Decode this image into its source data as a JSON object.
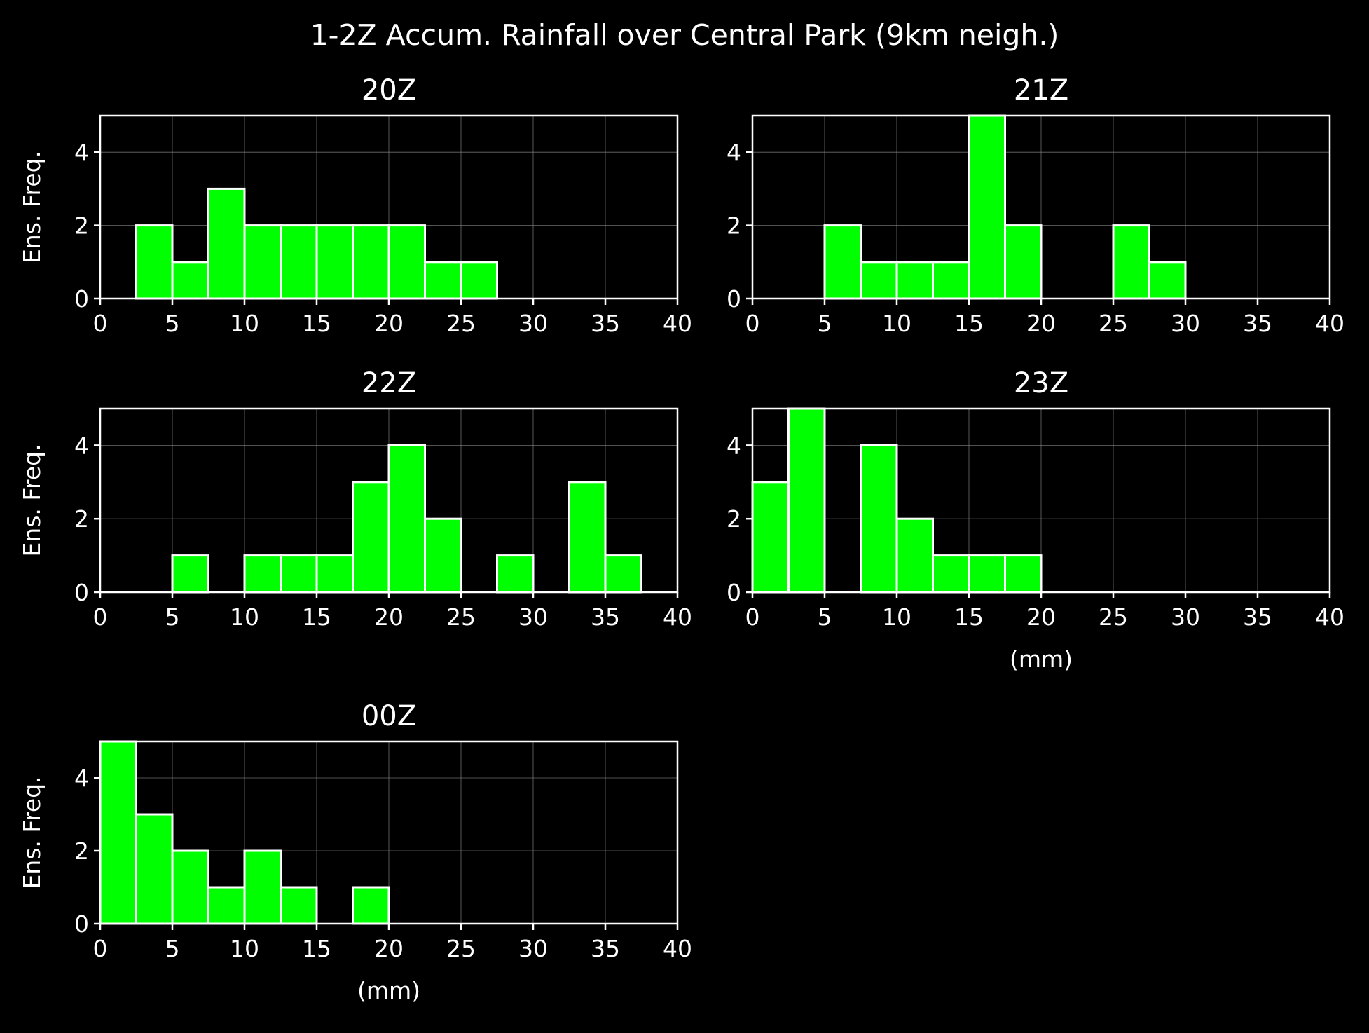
{
  "figure": {
    "suptitle": "1-2Z Accum. Rainfall over Central Park (9km neigh.)",
    "bar_color": "#00ff00",
    "edge_color": "#ffffff",
    "background": "#000000"
  },
  "chart_data": [
    {
      "type": "bar",
      "title": "20Z",
      "xlabel": "",
      "ylabel": "Ens. Freq.",
      "xlim": [
        0,
        40
      ],
      "ylim": [
        0,
        5
      ],
      "xticks": [
        0,
        5,
        10,
        15,
        20,
        25,
        30,
        35,
        40
      ],
      "yticks": [
        0,
        2,
        4
      ],
      "bin_edges": [
        0,
        2.5,
        5,
        7.5,
        10,
        12.5,
        15,
        17.5,
        20,
        22.5,
        25,
        27.5,
        30,
        32.5,
        35,
        37.5,
        40
      ],
      "values": [
        0,
        2,
        1,
        3,
        2,
        2,
        2,
        2,
        2,
        1,
        1,
        0,
        0,
        0,
        0,
        0
      ],
      "grid": true
    },
    {
      "type": "bar",
      "title": "21Z",
      "xlabel": "",
      "ylabel": "",
      "xlim": [
        0,
        40
      ],
      "ylim": [
        0,
        5
      ],
      "xticks": [
        0,
        5,
        10,
        15,
        20,
        25,
        30,
        35,
        40
      ],
      "yticks": [
        0,
        2,
        4
      ],
      "bin_edges": [
        0,
        2.5,
        5,
        7.5,
        10,
        12.5,
        15,
        17.5,
        20,
        22.5,
        25,
        27.5,
        30,
        32.5,
        35,
        37.5,
        40
      ],
      "values": [
        0,
        0,
        2,
        1,
        1,
        1,
        5,
        2,
        0,
        0,
        2,
        1,
        0,
        0,
        0,
        0
      ],
      "grid": true
    },
    {
      "type": "bar",
      "title": "22Z",
      "xlabel": "",
      "ylabel": "Ens. Freq.",
      "xlim": [
        0,
        40
      ],
      "ylim": [
        0,
        5
      ],
      "xticks": [
        0,
        5,
        10,
        15,
        20,
        25,
        30,
        35,
        40
      ],
      "yticks": [
        0,
        2,
        4
      ],
      "bin_edges": [
        0,
        2.5,
        5,
        7.5,
        10,
        12.5,
        15,
        17.5,
        20,
        22.5,
        25,
        27.5,
        30,
        32.5,
        35,
        37.5,
        40
      ],
      "values": [
        0,
        0,
        1,
        0,
        1,
        1,
        1,
        3,
        4,
        2,
        0,
        1,
        0,
        3,
        1,
        0
      ],
      "grid": true
    },
    {
      "type": "bar",
      "title": "23Z",
      "xlabel": "(mm)",
      "ylabel": "",
      "xlim": [
        0,
        40
      ],
      "ylim": [
        0,
        5
      ],
      "xticks": [
        0,
        5,
        10,
        15,
        20,
        25,
        30,
        35,
        40
      ],
      "yticks": [
        0,
        2,
        4
      ],
      "bin_edges": [
        0,
        2.5,
        5,
        7.5,
        10,
        12.5,
        15,
        17.5,
        20,
        22.5,
        25,
        27.5,
        30,
        32.5,
        35,
        37.5,
        40
      ],
      "values": [
        3,
        5,
        0,
        4,
        2,
        1,
        1,
        1,
        0,
        0,
        0,
        0,
        0,
        0,
        0,
        0
      ],
      "grid": true
    },
    {
      "type": "bar",
      "title": "00Z",
      "xlabel": "(mm)",
      "ylabel": "Ens. Freq.",
      "xlim": [
        0,
        40
      ],
      "ylim": [
        0,
        5
      ],
      "xticks": [
        0,
        5,
        10,
        15,
        20,
        25,
        30,
        35,
        40
      ],
      "yticks": [
        0,
        2,
        4
      ],
      "bin_edges": [
        0,
        2.5,
        5,
        7.5,
        10,
        12.5,
        15,
        17.5,
        20,
        22.5,
        25,
        27.5,
        30,
        32.5,
        35,
        37.5,
        40
      ],
      "values": [
        5,
        3,
        2,
        1,
        2,
        1,
        0,
        1,
        0,
        0,
        0,
        0,
        0,
        0,
        0,
        0
      ],
      "grid": true
    }
  ]
}
